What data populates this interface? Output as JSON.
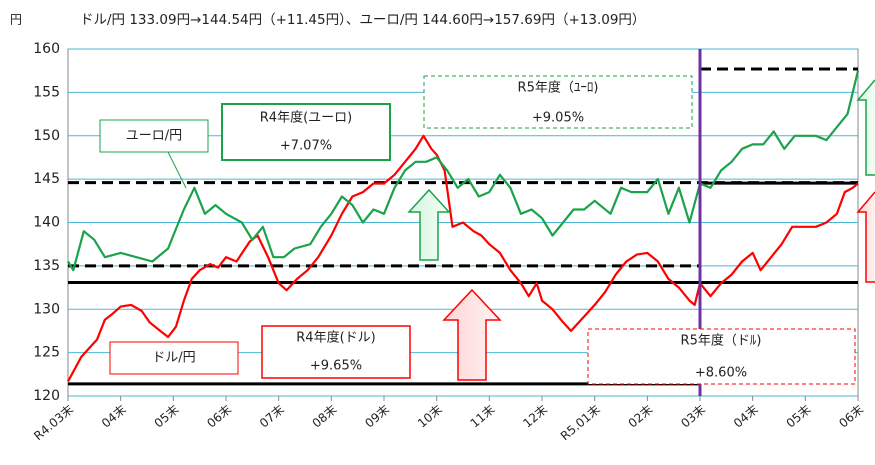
{
  "chart_data": {
    "type": "line",
    "title": "ドル/円 133.09円→144.54円（+11.45円）、ユーロ/円 144.60円→157.69円（+13.09円）",
    "y_axis_label": "円",
    "xlim": [
      0,
      15
    ],
    "xticks": [
      {
        "value": 0,
        "label": "R4.03末"
      },
      {
        "value": 1,
        "label": "04末"
      },
      {
        "value": 2,
        "label": "05末"
      },
      {
        "value": 3,
        "label": "06末"
      },
      {
        "value": 4,
        "label": "07末"
      },
      {
        "value": 5,
        "label": "08末"
      },
      {
        "value": 6,
        "label": "09末"
      },
      {
        "value": 7,
        "label": "10末"
      },
      {
        "value": 8,
        "label": "11末"
      },
      {
        "value": 9,
        "label": "12末"
      },
      {
        "value": 10,
        "label": "R5.01末"
      },
      {
        "value": 11,
        "label": "02末"
      },
      {
        "value": 12,
        "label": "03末"
      },
      {
        "value": 13,
        "label": "04末"
      },
      {
        "value": 14,
        "label": "05末"
      },
      {
        "value": 15,
        "label": "06末"
      }
    ],
    "ylim": [
      120,
      160
    ],
    "yticks": [
      120,
      125,
      130,
      135,
      140,
      145,
      150,
      155,
      160
    ],
    "grid": true,
    "grid_color": "#4bb8d8",
    "series": [
      {
        "name": "ドル/円",
        "color": "#ff0000",
        "x": [
          0,
          0.1,
          0.25,
          0.4,
          0.55,
          0.7,
          0.85,
          1.0,
          1.2,
          1.4,
          1.55,
          1.75,
          1.9,
          2.05,
          2.2,
          2.35,
          2.5,
          2.7,
          2.85,
          3.0,
          3.2,
          3.45,
          3.6,
          3.8,
          4.0,
          4.15,
          4.35,
          4.55,
          4.75,
          5.0,
          5.2,
          5.4,
          5.6,
          5.8,
          6.0,
          6.2,
          6.4,
          6.6,
          6.75,
          6.9,
          7.0,
          7.15,
          7.3,
          7.5,
          7.7,
          7.85,
          8.0,
          8.2,
          8.4,
          8.6,
          8.75,
          8.9,
          9.0,
          9.2,
          9.4,
          9.55,
          9.7,
          9.85,
          10.0,
          10.2,
          10.4,
          10.6,
          10.8,
          11.0,
          11.2,
          11.4,
          11.6,
          11.8,
          11.9,
          12.0,
          12.2,
          12.4,
          12.6,
          12.8,
          13.0,
          13.15,
          13.35,
          13.55,
          13.75,
          13.9,
          14.0,
          14.2,
          14.4,
          14.6,
          14.75,
          14.9,
          15.0
        ],
        "values": [
          121.7,
          122.8,
          124.5,
          125.5,
          126.5,
          128.8,
          129.5,
          130.3,
          130.5,
          129.8,
          128.5,
          127.5,
          126.8,
          128,
          131,
          133.5,
          134.5,
          135.2,
          134.8,
          136,
          135.5,
          137.8,
          138.5,
          136,
          133,
          132.2,
          133.5,
          134.5,
          136,
          138.5,
          141,
          143,
          143.5,
          144.5,
          144.5,
          145.5,
          147,
          148.5,
          150,
          148.5,
          147.8,
          146,
          139.5,
          140,
          139,
          138.5,
          137.5,
          136.5,
          134.5,
          133,
          131.5,
          133,
          131,
          130,
          128.5,
          127.5,
          128.5,
          129.5,
          130.5,
          132,
          134,
          135.5,
          136.3,
          136.5,
          135.5,
          133.5,
          132.5,
          131,
          130.5,
          133,
          131.5,
          133,
          134,
          135.5,
          136.5,
          134.5,
          136,
          137.5,
          139.5,
          139.5,
          139.5,
          139.5,
          140,
          141,
          143.5,
          144,
          144.5
        ]
      },
      {
        "name": "ユーロ/円",
        "color": "#1aa34a",
        "x": [
          0,
          0.1,
          0.3,
          0.5,
          0.7,
          1.0,
          1.3,
          1.6,
          1.9,
          2.0,
          2.2,
          2.4,
          2.6,
          2.8,
          3.0,
          3.3,
          3.5,
          3.7,
          3.9,
          4.1,
          4.3,
          4.6,
          4.8,
          5.0,
          5.2,
          5.4,
          5.6,
          5.8,
          6.0,
          6.2,
          6.4,
          6.6,
          6.8,
          7.0,
          7.2,
          7.4,
          7.6,
          7.8,
          8.0,
          8.2,
          8.4,
          8.6,
          8.8,
          9.0,
          9.2,
          9.4,
          9.6,
          9.8,
          10.0,
          10.3,
          10.5,
          10.7,
          11.0,
          11.2,
          11.4,
          11.6,
          11.8,
          12.0,
          12.2,
          12.4,
          12.6,
          12.8,
          13.0,
          13.2,
          13.4,
          13.6,
          13.8,
          14.0,
          14.2,
          14.4,
          14.6,
          14.8,
          15.0
        ],
        "values": [
          135.5,
          134.5,
          139,
          138,
          136,
          136.5,
          136,
          135.5,
          137,
          138.5,
          141.5,
          144,
          141,
          142,
          141,
          140,
          138,
          139.5,
          136,
          136,
          137,
          137.5,
          139.5,
          141,
          143,
          142,
          140,
          141.5,
          141,
          144,
          146,
          147,
          147,
          147.5,
          146,
          144,
          145,
          143,
          143.5,
          145.5,
          144,
          141,
          141.5,
          140.5,
          138.5,
          140,
          141.5,
          141.5,
          142.5,
          141,
          144,
          143.5,
          143.5,
          145,
          141,
          144,
          140,
          144.5,
          144,
          146,
          147,
          148.5,
          149,
          149,
          150.5,
          148.5,
          150,
          150,
          150,
          149.5,
          151,
          152.5,
          157.5
        ]
      }
    ],
    "reference_lines": [
      {
        "value": 144.6,
        "from": 0,
        "to": 15,
        "style": "dashed"
      },
      {
        "value": 135.0,
        "from": 0,
        "to": 12,
        "style": "dashed"
      },
      {
        "value": 133.09,
        "from": 0,
        "to": 15,
        "style": "solid"
      },
      {
        "value": 121.4,
        "from": 0,
        "to": 12,
        "style": "solid"
      },
      {
        "value": 157.69,
        "from": 12,
        "to": 15,
        "style": "dashed"
      },
      {
        "value": 144.54,
        "from": 12,
        "to": 15,
        "style": "solid"
      }
    ],
    "divider": {
      "value": 12,
      "color": "#7030a0"
    },
    "annotations": [
      "ユーロ/円",
      "R4年度(ユーロ)",
      "+7.07%",
      "R5年度（ﾕｰﾛ)",
      "+9.05%",
      "ドル/円",
      "R4年度(ドル)",
      "+9.65%",
      "R5年度（ドﾙ)",
      "+8.60%"
    ]
  }
}
